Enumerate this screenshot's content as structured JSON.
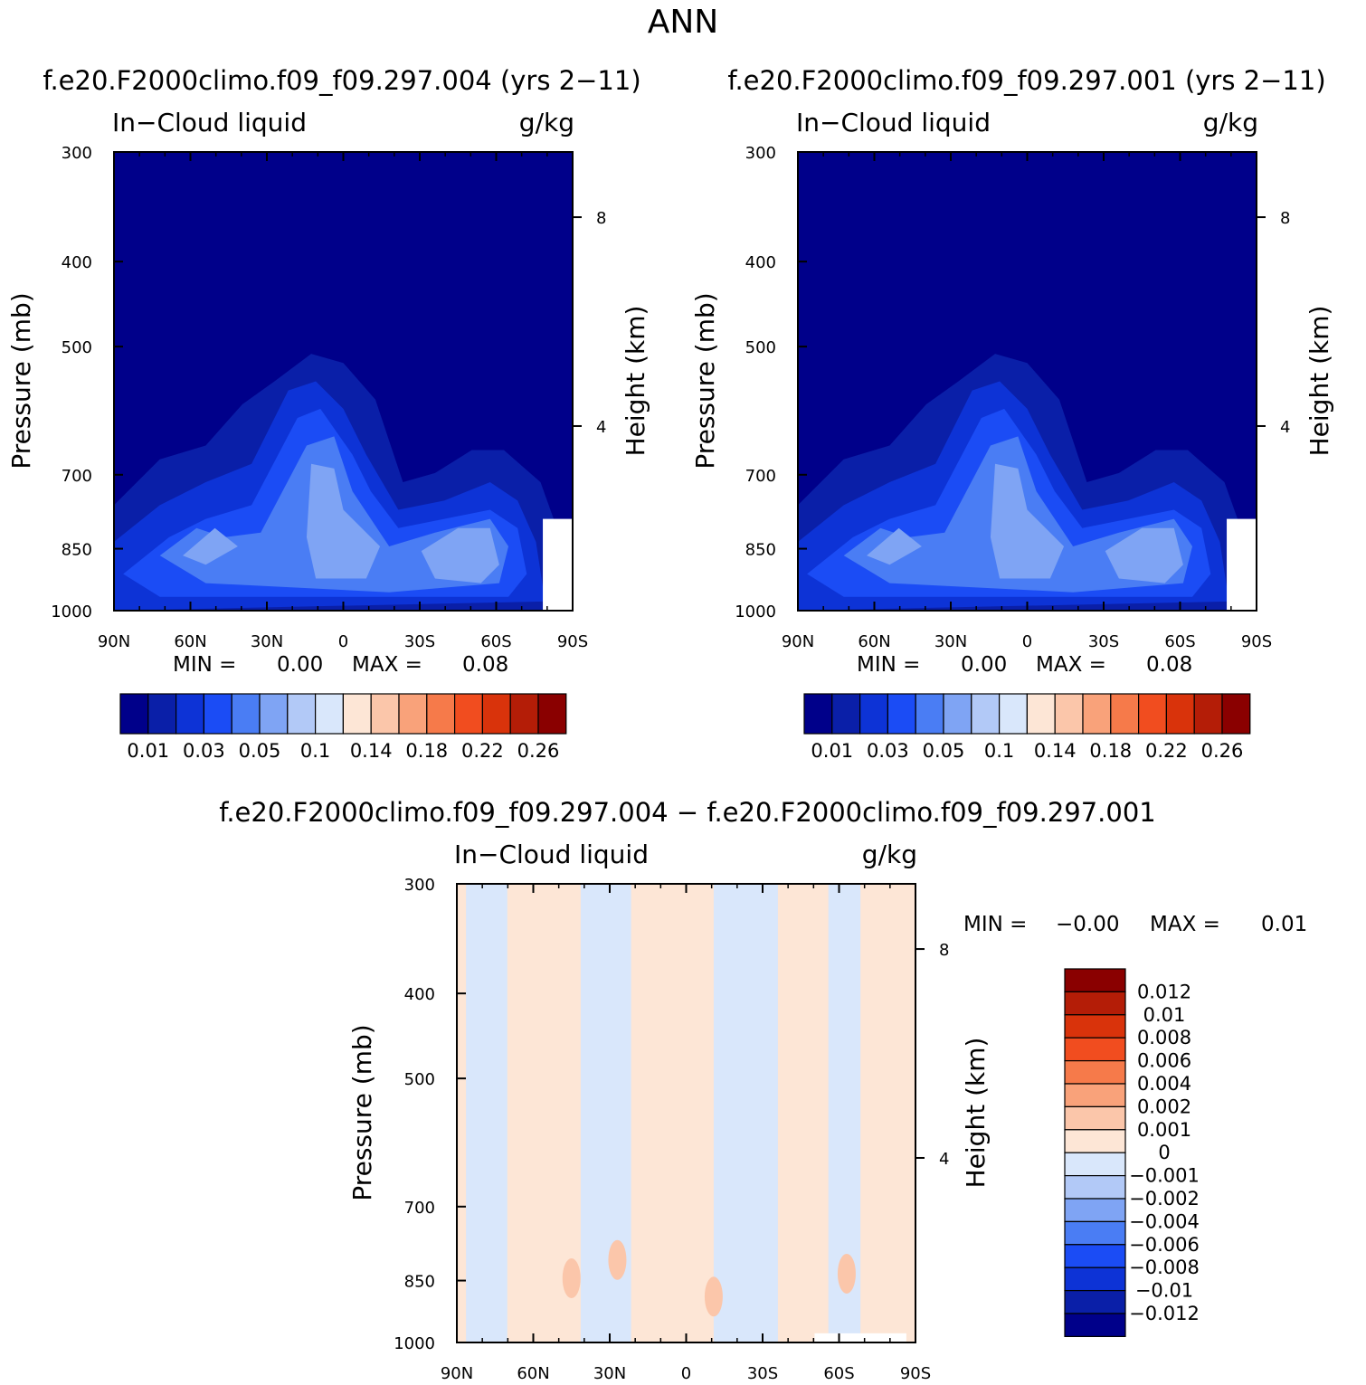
{
  "page": {
    "main_title": "ANN",
    "left_subtitle": "f.e20.F2000climo.f09_f09.297.004 (yrs 2−11)",
    "right_subtitle": "f.e20.F2000climo.f09_f09.297.001 (yrs 2−11)",
    "diff_subtitle": "f.e20.F2000climo.f09_f09.297.004 − f.e20.F2000climo.f09_f09.297.001"
  },
  "chart_data": [
    {
      "type": "heatmap",
      "id": "case_004",
      "title_left": "In−Cloud liquid",
      "title_right": "g/kg",
      "xlabel": "",
      "ylabel": "Pressure (mb)",
      "ylabel_right": "Height (km)",
      "x_ticks": [
        "90N",
        "60N",
        "30N",
        "0",
        "30S",
        "60S",
        "90S"
      ],
      "y_ticks": [
        "300",
        "400",
        "500",
        "700",
        "850",
        "1000"
      ],
      "y_ticks_right": [
        "8",
        "4"
      ],
      "min_label": "MIN =",
      "min_value": "0.00",
      "max_label": "MAX =",
      "max_value": "0.08",
      "levels": [
        "0.01",
        "0.03",
        "0.05",
        "0.1",
        "0.14",
        "0.18",
        "0.22",
        "0.26"
      ],
      "colors": [
        "#00008a",
        "#0a1fa8",
        "#0d33d6",
        "#1b4cf5",
        "#4a7df4",
        "#7fa4f4",
        "#b2c9f7",
        "#d9e7fb",
        "#fde6d6",
        "#fbc6aa",
        "#f9a27a",
        "#f67a4a",
        "#f14d1f",
        "#d9330b",
        "#b41d07",
        "#8a0000"
      ]
    },
    {
      "type": "heatmap",
      "id": "case_001",
      "title_left": "In−Cloud liquid",
      "title_right": "g/kg",
      "xlabel": "",
      "ylabel": "Pressure (mb)",
      "ylabel_right": "Height (km)",
      "x_ticks": [
        "90N",
        "60N",
        "30N",
        "0",
        "30S",
        "60S",
        "90S"
      ],
      "y_ticks": [
        "300",
        "400",
        "500",
        "700",
        "850",
        "1000"
      ],
      "y_ticks_right": [
        "8",
        "4"
      ],
      "min_label": "MIN =",
      "min_value": "0.00",
      "max_label": "MAX =",
      "max_value": "0.08",
      "levels": [
        "0.01",
        "0.03",
        "0.05",
        "0.1",
        "0.14",
        "0.18",
        "0.22",
        "0.26"
      ],
      "colors": [
        "#00008a",
        "#0a1fa8",
        "#0d33d6",
        "#1b4cf5",
        "#4a7df4",
        "#7fa4f4",
        "#b2c9f7",
        "#d9e7fb",
        "#fde6d6",
        "#fbc6aa",
        "#f9a27a",
        "#f67a4a",
        "#f14d1f",
        "#d9330b",
        "#b41d07",
        "#8a0000"
      ]
    },
    {
      "type": "heatmap",
      "id": "difference",
      "title_left": "In−Cloud liquid",
      "title_right": "g/kg",
      "xlabel": "",
      "ylabel": "Pressure (mb)",
      "ylabel_right": "Height (km)",
      "x_ticks": [
        "90N",
        "60N",
        "30N",
        "0",
        "30S",
        "60S",
        "90S"
      ],
      "y_ticks": [
        "300",
        "400",
        "500",
        "700",
        "850",
        "1000"
      ],
      "y_ticks_right": [
        "8",
        "4"
      ],
      "min_label": "MIN =",
      "min_value": "−0.00",
      "max_label": "MAX =",
      "max_value": "0.01",
      "levels": [
        "0.012",
        "0.01",
        "0.008",
        "0.006",
        "0.004",
        "0.002",
        "0.001",
        "0",
        "−0.001",
        "−0.002",
        "−0.004",
        "−0.006",
        "−0.008",
        "−0.01",
        "−0.012"
      ],
      "colors": [
        "#8a0000",
        "#b41d07",
        "#d9330b",
        "#f14d1f",
        "#f67a4a",
        "#f9a27a",
        "#fbc6aa",
        "#fde6d6",
        "#d9e7fb",
        "#b2c9f7",
        "#7fa4f4",
        "#4a7df4",
        "#1b4cf5",
        "#0d33d6",
        "#0a1fa8",
        "#00008a"
      ]
    }
  ]
}
